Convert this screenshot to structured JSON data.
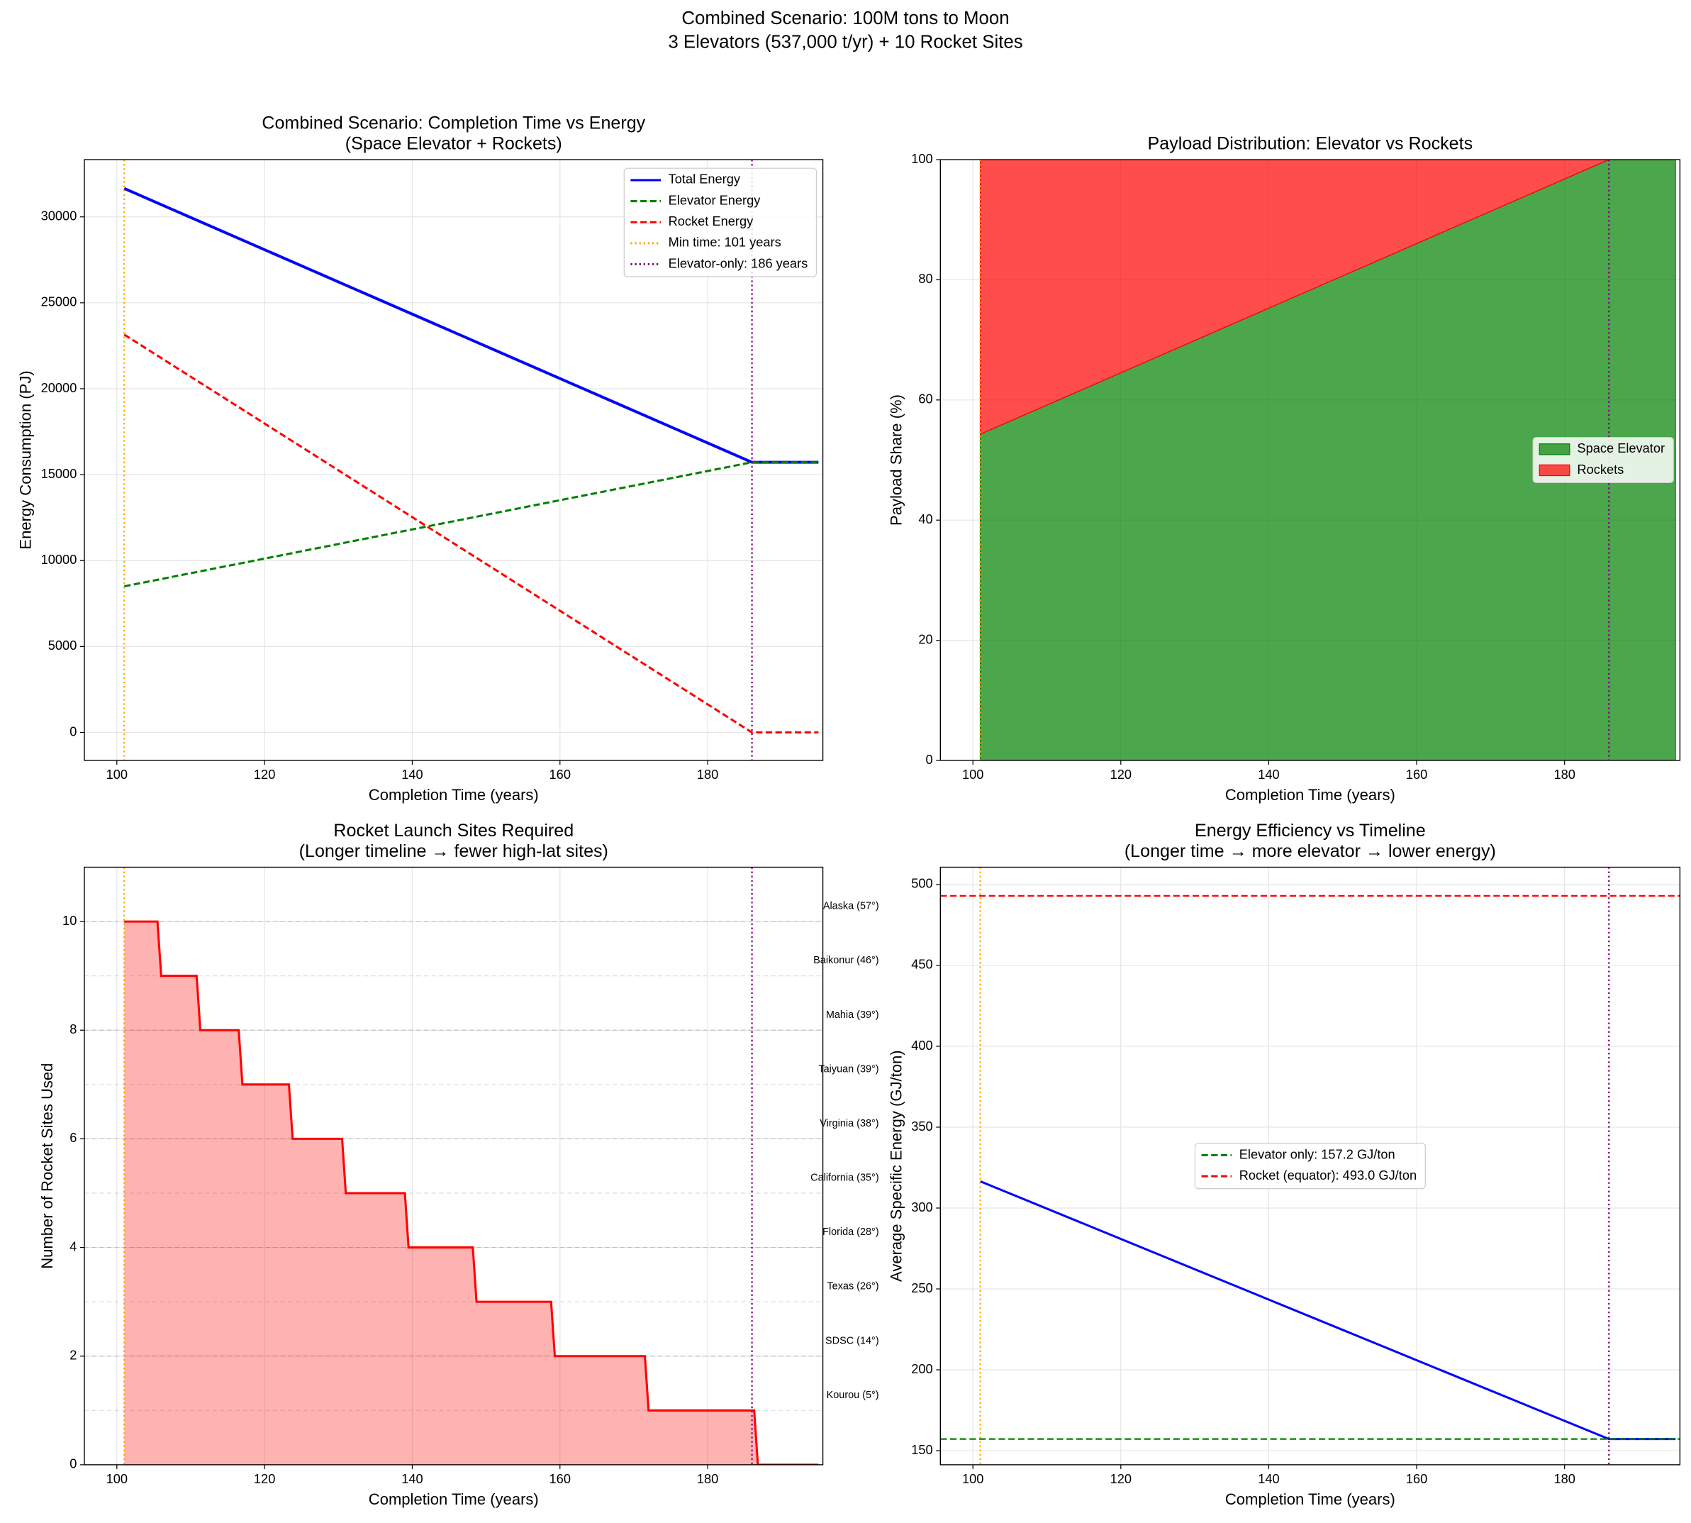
{
  "title": "Combined Scenario: 100M tons to Moon",
  "subtitle": "3 Elevators (537,000 t/yr) + 10 Rocket Sites",
  "chart_data": [
    {
      "type": "line",
      "title": [
        "Combined Scenario: Completion Time vs Energy",
        "(Space Elevator + Rockets)"
      ],
      "xlabel": "Completion Time (years)",
      "ylabel": "Energy Consumption (PJ)",
      "xlim": [
        95.6,
        195.6
      ],
      "xticks": [
        100,
        120,
        140,
        160,
        180
      ],
      "ylim": [
        -1630,
        33330
      ],
      "yticks": [
        0,
        5000,
        10000,
        15000,
        20000,
        25000,
        30000
      ],
      "grid": true,
      "legend": "upper right",
      "x": [
        101,
        186,
        195
      ],
      "series": [
        {
          "name": "Total Energy",
          "color": "#0000ff",
          "style": "solid",
          "values": [
            31650,
            15720,
            15720
          ]
        },
        {
          "name": "Elevator Energy",
          "color": "#008000",
          "style": "dashed",
          "values": [
            8500,
            15720,
            15720
          ]
        },
        {
          "name": "Rocket Energy",
          "color": "#ff0000",
          "style": "dashed",
          "values": [
            23150,
            0,
            0
          ]
        }
      ],
      "vlines": [
        {
          "name": "Min time: 101 years",
          "x": 101,
          "color": "#ffa500",
          "style": "dotted"
        },
        {
          "name": "Elevator-only: 186 years",
          "x": 186,
          "color": "#800080",
          "style": "dotted"
        }
      ]
    },
    {
      "type": "area",
      "stacked": true,
      "alpha": 0.7,
      "title": [
        "Payload Distribution: Elevator vs Rockets"
      ],
      "xlabel": "Completion Time (years)",
      "ylabel": "Payload Share (%)",
      "xlim": [
        95.6,
        195.6
      ],
      "xticks": [
        100,
        120,
        140,
        160,
        180
      ],
      "ylim": [
        0,
        100
      ],
      "yticks": [
        0,
        20,
        40,
        60,
        80,
        100
      ],
      "grid": true,
      "legend": "center right",
      "x": [
        101,
        186,
        195
      ],
      "series": [
        {
          "name": "Space Elevator",
          "color": "#008000",
          "values": [
            54.3,
            100,
            100
          ]
        },
        {
          "name": "Rockets",
          "color": "#ff0000",
          "values": [
            45.7,
            0,
            0
          ]
        }
      ],
      "vlines": [
        {
          "x": 101,
          "color": "#ffa500",
          "style": "dotted"
        },
        {
          "x": 186,
          "color": "#800080",
          "style": "dotted"
        }
      ]
    },
    {
      "type": "area",
      "alpha": 0.3,
      "title": [
        "Rocket Launch Sites Required",
        "(Longer timeline → fewer high-lat sites)"
      ],
      "xlabel": "Completion Time (years)",
      "ylabel": "Number of Rocket Sites Used",
      "xlim": [
        95.6,
        195.6
      ],
      "xticks": [
        100,
        120,
        140,
        160,
        180
      ],
      "ylim": [
        0,
        11
      ],
      "yticks": [
        0,
        2,
        4,
        6,
        8,
        10
      ],
      "grid": true,
      "x": [
        101,
        105.5,
        106,
        110.8,
        111.3,
        116.5,
        117,
        123.3,
        123.8,
        130.5,
        131,
        139,
        139.5,
        148.2,
        148.7,
        158.8,
        159.3,
        171.5,
        172,
        186.3,
        186.8,
        195
      ],
      "series": [
        {
          "color": "#ff0000",
          "values": [
            10,
            10,
            9,
            9,
            8,
            8,
            7,
            7,
            6,
            6,
            5,
            5,
            4,
            4,
            3,
            3,
            2,
            2,
            1,
            1,
            0,
            0
          ]
        }
      ],
      "vlines": [
        {
          "x": 101,
          "color": "#ffa500",
          "style": "dotted"
        },
        {
          "x": 186,
          "color": "#800080",
          "style": "dotted"
        }
      ],
      "site_lines": [
        {
          "value": 1,
          "label": "Kourou (5°)"
        },
        {
          "value": 2,
          "label": "SDSC (14°)"
        },
        {
          "value": 3,
          "label": "Texas (26°)"
        },
        {
          "value": 4,
          "label": "Florida (28°)"
        },
        {
          "value": 5,
          "label": "California (35°)"
        },
        {
          "value": 6,
          "label": "Virginia (38°)"
        },
        {
          "value": 7,
          "label": "Taiyuan (39°)"
        },
        {
          "value": 8,
          "label": "Mahia (39°)"
        },
        {
          "value": 9,
          "label": "Baikonur (46°)"
        },
        {
          "value": 10,
          "label": "Alaska (57°)"
        }
      ]
    },
    {
      "type": "line",
      "title": [
        "Energy Efficiency vs Timeline",
        "(Longer time → more elevator → lower energy)"
      ],
      "xlabel": "Completion Time (years)",
      "ylabel": "Average Specific Energy (GJ/ton)",
      "xlim": [
        95.6,
        195.6
      ],
      "xticks": [
        100,
        120,
        140,
        160,
        180
      ],
      "ylim": [
        141.3,
        510.7
      ],
      "yticks": [
        150,
        200,
        250,
        300,
        350,
        400,
        450,
        500
      ],
      "grid": true,
      "legend": "center",
      "x": [
        101,
        186,
        195
      ],
      "series": [
        {
          "color": "#0000ff",
          "style": "solid",
          "values": [
            316.5,
            157.2,
            157.2
          ]
        }
      ],
      "hlines": [
        {
          "name": "Elevator only: 157.2 GJ/ton",
          "y": 157.2,
          "color": "#008000",
          "style": "dashed"
        },
        {
          "name": "Rocket (equator): 493.0 GJ/ton",
          "y": 493,
          "color": "#ff0000",
          "style": "dashed"
        }
      ],
      "vlines": [
        {
          "x": 101,
          "color": "#ffa500",
          "style": "dotted"
        },
        {
          "x": 186,
          "color": "#800080",
          "style": "dotted"
        }
      ]
    }
  ]
}
